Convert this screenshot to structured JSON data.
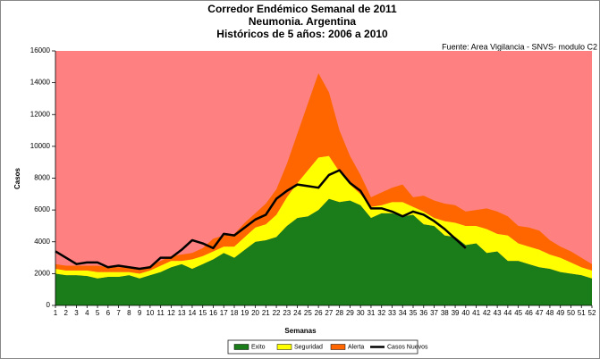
{
  "chart_data": {
    "type": "stacked-area-line",
    "title": [
      "Corredor Endémico Semanal de 2011",
      "Neumonia.  Argentina",
      "Históricos de 5 años: 2006 a 2010"
    ],
    "source": "Fuente: Area Vigilancia - SNVS- modulo C2",
    "x_label": "Semanas",
    "y_label": "Casos",
    "plot_background": "#ff8080",
    "categories": [
      1,
      2,
      3,
      4,
      5,
      6,
      7,
      8,
      9,
      10,
      11,
      12,
      13,
      14,
      15,
      16,
      17,
      18,
      19,
      20,
      21,
      22,
      23,
      24,
      25,
      26,
      27,
      28,
      29,
      30,
      31,
      32,
      33,
      34,
      35,
      36,
      37,
      38,
      39,
      40,
      41,
      42,
      43,
      44,
      45,
      46,
      47,
      48,
      49,
      50,
      51,
      52
    ],
    "ylim": [
      0,
      16000
    ],
    "yticks": [
      0,
      2000,
      4000,
      6000,
      8000,
      10000,
      12000,
      14000,
      16000
    ],
    "series": [
      {
        "name": "Exito",
        "color": "#1a7d1a",
        "kind": "area",
        "values": [
          2000,
          1900,
          1900,
          1850,
          1700,
          1800,
          1800,
          1900,
          1700,
          1900,
          2100,
          2400,
          2600,
          2300,
          2600,
          2900,
          3300,
          3000,
          3500,
          4000,
          4100,
          4300,
          5000,
          5500,
          5600,
          6000,
          6700,
          6500,
          6600,
          6300,
          5500,
          5800,
          5800,
          5600,
          5700,
          5100,
          5000,
          4400,
          4300,
          3800,
          3900,
          3300,
          3400,
          2800,
          2800,
          2600,
          2400,
          2300,
          2100,
          2000,
          1900,
          1700
        ]
      },
      {
        "name": "Seguridad",
        "color": "#ffff00",
        "kind": "area",
        "values": [
          300,
          300,
          300,
          350,
          400,
          300,
          300,
          200,
          300,
          300,
          400,
          400,
          200,
          600,
          500,
          500,
          400,
          700,
          800,
          900,
          1000,
          1400,
          1800,
          2200,
          2900,
          3300,
          2700,
          1900,
          1000,
          700,
          700,
          500,
          700,
          900,
          500,
          800,
          500,
          900,
          900,
          1200,
          1100,
          1500,
          1100,
          1600,
          1100,
          1100,
          1100,
          900,
          900,
          700,
          500,
          500
        ]
      },
      {
        "name": "Alerta",
        "color": "#ff6600",
        "kind": "area",
        "values": [
          300,
          300,
          300,
          300,
          400,
          300,
          300,
          300,
          300,
          300,
          300,
          300,
          400,
          400,
          500,
          800,
          700,
          800,
          900,
          900,
          1300,
          1600,
          2100,
          3100,
          4200,
          5300,
          4000,
          2600,
          1800,
          1200,
          600,
          800,
          900,
          1100,
          600,
          1000,
          1100,
          1100,
          1100,
          900,
          1000,
          1300,
          1400,
          1200,
          1100,
          1200,
          1200,
          900,
          700,
          700,
          600,
          400
        ]
      },
      {
        "name": "Casos Nuevos",
        "color": "#000000",
        "kind": "line",
        "values": [
          3400,
          3000,
          2600,
          2700,
          2700,
          2400,
          2500,
          2400,
          2300,
          2400,
          3000,
          3000,
          3500,
          4100,
          3900,
          3600,
          4500,
          4400,
          4900,
          5400,
          5700,
          6700,
          7200,
          7600,
          7500,
          7400,
          8200,
          8500,
          7700,
          7200,
          6100,
          6100,
          5900,
          5600,
          5900,
          5700,
          5300,
          4800,
          4200,
          3600,
          null,
          null,
          null,
          null,
          null,
          null,
          null,
          null,
          null,
          null,
          null,
          null
        ]
      }
    ]
  }
}
